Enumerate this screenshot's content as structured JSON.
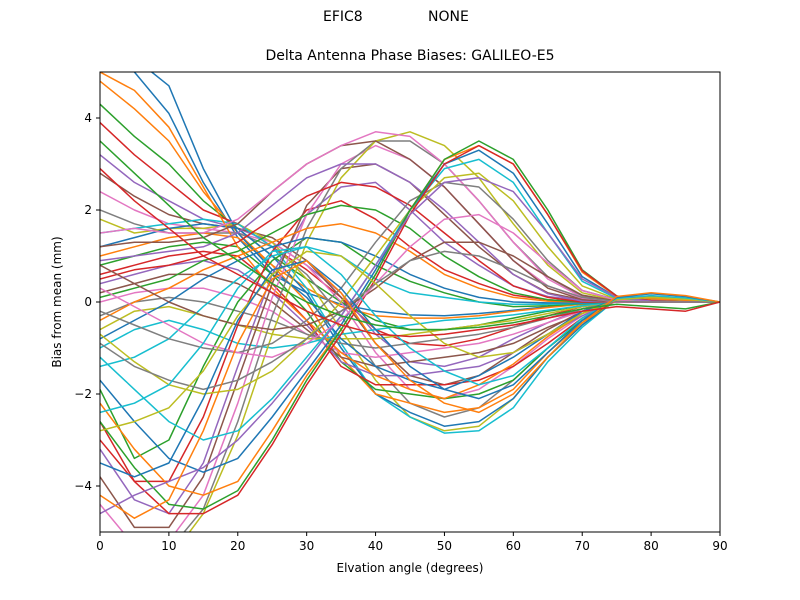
{
  "header": {
    "left_label": "EFIC8",
    "right_label": "NONE"
  },
  "chart_data": {
    "type": "line",
    "title": "Delta Antenna Phase Biases: GALILEO-E5",
    "xlabel": "Elvation angle (degrees)",
    "ylabel": "Bias from mean (mm)",
    "xlim": [
      0,
      90
    ],
    "ylim": [
      -5,
      5
    ],
    "xticks": [
      0,
      10,
      20,
      30,
      40,
      50,
      60,
      70,
      80,
      90
    ],
    "yticks": [
      -4,
      -2,
      0,
      2,
      4
    ],
    "ytick_labels": [
      "−4",
      "−2",
      "0",
      "2",
      "4"
    ],
    "grid": false,
    "legend": "none",
    "x": [
      0,
      5,
      10,
      15,
      20,
      25,
      30,
      35,
      40,
      45,
      50,
      55,
      60,
      65,
      70,
      75,
      80,
      85,
      90
    ],
    "series": [
      {
        "values": [
          5.6,
          5.0,
          4.1,
          2.6,
          1.4,
          0.6,
          0.2,
          -0.05,
          -0.2,
          -0.28,
          -0.3,
          -0.25,
          -0.18,
          -0.1,
          -0.03,
          0.02,
          0.03,
          0.02,
          0.0
        ]
      },
      {
        "values": [
          4.8,
          4.2,
          3.5,
          2.4,
          1.5,
          0.8,
          0.3,
          -0.1,
          -0.3,
          -0.35,
          -0.35,
          -0.3,
          -0.2,
          -0.12,
          -0.05,
          0.0,
          0.02,
          0.01,
          0.0
        ]
      },
      {
        "values": [
          4.3,
          3.6,
          3.0,
          2.2,
          1.6,
          1.0,
          0.5,
          0.0,
          -0.4,
          -0.6,
          -0.6,
          -0.5,
          -0.35,
          -0.2,
          -0.08,
          0.0,
          0.02,
          0.01,
          0.0
        ]
      },
      {
        "values": [
          3.9,
          3.2,
          2.6,
          2.0,
          1.7,
          1.2,
          0.7,
          0.1,
          -0.6,
          -0.9,
          -0.95,
          -0.8,
          -0.55,
          -0.3,
          -0.1,
          0.0,
          0.03,
          0.02,
          0.0
        ]
      },
      {
        "values": [
          3.2,
          2.6,
          2.2,
          1.8,
          1.6,
          1.3,
          0.8,
          0.2,
          -0.7,
          -1.3,
          -1.4,
          -1.2,
          -0.8,
          -0.45,
          -0.15,
          0.02,
          0.05,
          0.03,
          0.0
        ]
      },
      {
        "values": [
          2.8,
          2.3,
          1.9,
          1.7,
          1.6,
          1.4,
          0.9,
          0.1,
          -0.9,
          -1.6,
          -1.8,
          -1.6,
          -1.1,
          -0.6,
          -0.2,
          0.03,
          0.07,
          0.04,
          0.0
        ]
      },
      {
        "values": [
          2.4,
          2.0,
          1.7,
          1.6,
          1.5,
          1.3,
          0.8,
          0.0,
          -1.1,
          -1.9,
          -2.1,
          -1.9,
          -1.4,
          -0.8,
          -0.3,
          0.03,
          0.08,
          0.05,
          0.0
        ]
      },
      {
        "values": [
          2.0,
          1.7,
          1.5,
          1.5,
          1.5,
          1.2,
          0.6,
          -0.3,
          -1.4,
          -2.2,
          -2.5,
          -2.3,
          -1.7,
          -1.0,
          -0.4,
          0.05,
          0.1,
          0.06,
          0.0
        ]
      },
      {
        "values": [
          1.8,
          1.5,
          1.6,
          1.6,
          1.7,
          1.3,
          0.5,
          -0.6,
          -1.7,
          -2.5,
          -2.8,
          -2.7,
          -2.1,
          -1.2,
          -0.5,
          0.05,
          0.12,
          0.07,
          0.0
        ]
      },
      {
        "values": [
          1.5,
          1.6,
          1.7,
          1.8,
          1.7,
          1.2,
          0.3,
          -0.9,
          -2.0,
          -2.5,
          -2.85,
          -2.8,
          -2.3,
          -1.3,
          -0.55,
          0.06,
          0.13,
          0.08,
          0.0
        ]
      },
      {
        "values": [
          1.2,
          1.4,
          1.6,
          1.7,
          1.6,
          1.0,
          0.2,
          -1.0,
          -2.0,
          -2.4,
          -2.7,
          -2.6,
          -2.1,
          -1.2,
          -0.5,
          0.06,
          0.12,
          0.07,
          0.0
        ]
      },
      {
        "values": [
          1.0,
          1.2,
          1.4,
          1.5,
          1.4,
          0.8,
          0.0,
          -1.2,
          -2.0,
          -2.2,
          -2.4,
          -2.3,
          -1.9,
          -1.1,
          -0.45,
          0.05,
          0.11,
          0.06,
          0.0
        ]
      },
      {
        "values": [
          0.8,
          1.0,
          1.2,
          1.3,
          1.2,
          0.6,
          -0.2,
          -1.3,
          -1.9,
          -2.0,
          -2.1,
          -2.0,
          -1.7,
          -1.0,
          -0.4,
          0.04,
          0.1,
          0.05,
          0.0
        ]
      },
      {
        "values": [
          0.6,
          0.8,
          1.0,
          1.1,
          1.0,
          0.4,
          -0.4,
          -1.4,
          -1.8,
          -1.8,
          -1.8,
          -1.7,
          -1.4,
          -0.9,
          -0.35,
          0.04,
          0.09,
          0.05,
          0.0
        ]
      },
      {
        "values": [
          0.4,
          0.6,
          0.8,
          0.9,
          0.7,
          0.2,
          -0.5,
          -1.3,
          -1.6,
          -1.6,
          -1.5,
          -1.4,
          -1.1,
          -0.7,
          -0.3,
          0.03,
          0.08,
          0.04,
          0.0
        ]
      },
      {
        "values": [
          0.2,
          0.4,
          0.6,
          0.6,
          0.4,
          0.0,
          -0.6,
          -1.2,
          -1.4,
          -1.3,
          -1.2,
          -1.1,
          -0.9,
          -0.55,
          -0.25,
          0.02,
          0.06,
          0.03,
          0.0
        ]
      },
      {
        "values": [
          0.0,
          0.2,
          0.3,
          0.3,
          0.1,
          -0.2,
          -0.7,
          -1.1,
          -1.2,
          -1.1,
          -1.0,
          -0.9,
          -0.7,
          -0.45,
          -0.2,
          0.02,
          0.05,
          0.02,
          0.0
        ]
      },
      {
        "values": [
          -0.3,
          0.0,
          0.1,
          0.0,
          -0.2,
          -0.4,
          -0.7,
          -0.9,
          -1.0,
          -0.9,
          -0.8,
          -0.7,
          -0.55,
          -0.35,
          -0.15,
          0.02,
          0.04,
          0.02,
          0.0
        ]
      },
      {
        "values": [
          -0.6,
          -0.2,
          -0.1,
          -0.3,
          -0.5,
          -0.7,
          -0.8,
          -0.8,
          -0.8,
          -0.7,
          -0.6,
          -0.5,
          -0.4,
          -0.25,
          -0.1,
          0.01,
          0.03,
          0.01,
          0.0
        ]
      },
      {
        "values": [
          -1.0,
          -0.6,
          -0.4,
          -0.6,
          -0.9,
          -1.0,
          -0.9,
          -0.7,
          -0.6,
          -0.5,
          -0.4,
          -0.35,
          -0.28,
          -0.18,
          -0.08,
          0.01,
          0.02,
          0.01,
          0.0
        ]
      },
      {
        "values": [
          5.5,
          5.3,
          4.7,
          2.9,
          1.5,
          0.7,
          0.1,
          -0.8,
          -1.4,
          -1.7,
          -1.9,
          -1.6,
          -1.2,
          -0.7,
          -0.2,
          0.05,
          0.08,
          0.05,
          0.0
        ]
      },
      {
        "values": [
          5.0,
          4.6,
          3.8,
          2.5,
          1.2,
          0.3,
          -0.4,
          -1.1,
          -1.6,
          -1.9,
          -2.1,
          -1.8,
          -1.35,
          -0.75,
          -0.25,
          0.04,
          0.07,
          0.04,
          0.0
        ]
      },
      {
        "values": [
          -1.9,
          -3.4,
          -3.0,
          -1.4,
          0.0,
          0.9,
          1.4,
          1.3,
          0.8,
          0.45,
          0.2,
          0.0,
          -0.1,
          -0.08,
          -0.04,
          0.0,
          0.01,
          0.0,
          0.0
        ]
      },
      {
        "values": [
          -2.6,
          -3.9,
          -3.9,
          -2.5,
          -0.5,
          1.1,
          2.0,
          2.2,
          1.8,
          1.2,
          0.7,
          0.4,
          0.15,
          0.05,
          0.0,
          0.0,
          0.0,
          0.0,
          0.0
        ]
      },
      {
        "values": [
          -3.2,
          -4.3,
          -4.6,
          -3.5,
          -1.4,
          0.6,
          1.9,
          2.5,
          2.6,
          2.0,
          1.3,
          0.8,
          0.35,
          0.12,
          0.03,
          0.0,
          0.0,
          0.0,
          0.0
        ]
      },
      {
        "values": [
          -3.8,
          -4.9,
          -4.9,
          -3.8,
          -1.7,
          0.4,
          2.1,
          2.9,
          3.0,
          2.6,
          1.9,
          1.2,
          0.6,
          0.2,
          0.05,
          0.0,
          0.0,
          0.0,
          0.0
        ]
      },
      {
        "values": [
          -4.4,
          -5.3,
          -5.2,
          -4.2,
          -2.2,
          0.1,
          1.9,
          3.0,
          3.4,
          3.1,
          2.5,
          1.7,
          0.9,
          0.35,
          0.08,
          0.01,
          0.0,
          0.0,
          0.0
        ]
      },
      {
        "values": [
          -5.0,
          -5.6,
          -5.4,
          -4.5,
          -2.6,
          -0.3,
          1.6,
          2.9,
          3.5,
          3.5,
          3.0,
          2.2,
          1.3,
          0.55,
          0.12,
          0.02,
          0.01,
          0.0,
          0.0
        ]
      },
      {
        "values": [
          -5.6,
          -5.8,
          -5.6,
          -4.6,
          -2.9,
          -0.7,
          1.3,
          2.7,
          3.5,
          3.7,
          3.4,
          2.7,
          1.7,
          0.8,
          0.2,
          0.03,
          0.01,
          0.0,
          0.0
        ]
      },
      {
        "values": [
          -1.4,
          -1.2,
          -0.8,
          -0.1,
          0.5,
          1.0,
          1.2,
          1.0,
          0.5,
          0.2,
          0.1,
          0.0,
          -0.05,
          -0.05,
          -0.03,
          0.0,
          0.0,
          0.0,
          0.0
        ]
      },
      {
        "values": [
          -0.8,
          -0.4,
          0.0,
          0.5,
          0.9,
          1.2,
          1.4,
          1.3,
          1.0,
          0.6,
          0.3,
          0.1,
          0.0,
          -0.02,
          -0.02,
          0.0,
          0.0,
          0.0,
          0.0
        ]
      },
      {
        "values": [
          -0.4,
          0.0,
          0.3,
          0.7,
          1.0,
          1.3,
          1.6,
          1.7,
          1.5,
          1.1,
          0.6,
          0.3,
          0.1,
          0.02,
          0.0,
          0.0,
          0.0,
          0.0,
          0.0
        ]
      },
      {
        "values": [
          0.1,
          0.3,
          0.5,
          0.9,
          1.1,
          1.5,
          1.9,
          2.1,
          2.0,
          1.6,
          1.0,
          0.55,
          0.2,
          0.05,
          0.0,
          0.0,
          0.0,
          0.0,
          0.0
        ]
      },
      {
        "values": [
          0.5,
          0.7,
          0.8,
          1.0,
          1.3,
          1.8,
          2.3,
          2.6,
          2.5,
          2.1,
          1.5,
          0.9,
          0.35,
          0.1,
          0.0,
          0.0,
          0.0,
          0.0,
          0.0
        ]
      },
      {
        "values": [
          0.9,
          1.0,
          1.1,
          1.2,
          1.5,
          2.1,
          2.7,
          3.0,
          3.0,
          2.6,
          2.0,
          1.3,
          0.6,
          0.18,
          0.02,
          0.0,
          0.0,
          0.0,
          0.0
        ]
      },
      {
        "values": [
          1.2,
          1.3,
          1.3,
          1.4,
          1.7,
          2.4,
          3.0,
          3.4,
          3.5,
          3.1,
          2.5,
          1.7,
          0.9,
          0.3,
          0.05,
          0.0,
          0.0,
          0.0,
          0.0
        ]
      },
      {
        "values": [
          1.5,
          1.6,
          1.5,
          1.5,
          1.8,
          2.4,
          3.0,
          3.4,
          3.7,
          3.6,
          3.0,
          2.2,
          1.3,
          0.5,
          0.1,
          0.0,
          0.0,
          0.0,
          0.0
        ]
      },
      {
        "values": [
          -0.2,
          -0.5,
          -0.8,
          -1.0,
          -1.1,
          -0.9,
          -0.4,
          0.3,
          1.3,
          2.2,
          2.6,
          2.5,
          1.8,
          0.9,
          0.25,
          0.05,
          0.0,
          0.0,
          0.0
        ]
      },
      {
        "values": [
          -0.7,
          -1.3,
          -1.8,
          -2.0,
          -1.9,
          -1.5,
          -0.8,
          0.0,
          1.0,
          2.0,
          2.7,
          2.8,
          2.2,
          1.2,
          0.35,
          0.06,
          0.01,
          0.0,
          0.0
        ]
      },
      {
        "values": [
          -1.2,
          -1.9,
          -2.6,
          -3.0,
          -2.8,
          -2.1,
          -1.2,
          -0.3,
          0.8,
          2.0,
          2.9,
          3.1,
          2.6,
          1.5,
          0.45,
          0.08,
          0.02,
          0.0,
          0.0
        ]
      },
      {
        "values": [
          -1.7,
          -2.6,
          -3.4,
          -3.7,
          -3.4,
          -2.5,
          -1.5,
          -0.5,
          0.7,
          2.0,
          3.0,
          3.3,
          2.8,
          1.7,
          0.55,
          0.1,
          0.02,
          0.0,
          0.0
        ]
      },
      {
        "values": [
          -2.2,
          -3.2,
          -4.0,
          -4.2,
          -3.9,
          -2.8,
          -1.6,
          -0.6,
          0.6,
          2.0,
          3.1,
          3.4,
          3.0,
          1.9,
          0.65,
          0.12,
          0.03,
          0.0,
          0.0
        ]
      },
      {
        "values": [
          -2.6,
          -3.6,
          -4.4,
          -4.5,
          -4.1,
          -3.0,
          -1.7,
          -0.6,
          0.6,
          2.0,
          3.1,
          3.5,
          3.1,
          2.0,
          0.7,
          0.13,
          0.03,
          0.0,
          0.0
        ]
      },
      {
        "values": [
          -3.0,
          -3.9,
          -4.6,
          -4.6,
          -4.2,
          -3.1,
          -1.8,
          -0.7,
          0.5,
          1.9,
          3.0,
          3.4,
          3.0,
          1.9,
          0.68,
          0.13,
          0.03,
          0.0,
          0.0
        ]
      },
      {
        "values": [
          -4.6,
          -4.2,
          -3.9,
          -3.6,
          -3.0,
          -2.2,
          -1.3,
          -0.3,
          0.8,
          1.9,
          2.6,
          2.7,
          2.4,
          1.5,
          0.5,
          0.1,
          0.02,
          0.0,
          0.0
        ]
      },
      {
        "values": [
          0.8,
          0.4,
          0.0,
          -0.3,
          -0.5,
          -0.6,
          -0.5,
          -0.2,
          0.3,
          0.9,
          1.3,
          1.3,
          1.0,
          0.55,
          0.15,
          0.02,
          0.0,
          0.0,
          0.0
        ]
      },
      {
        "values": [
          0.3,
          -0.1,
          -0.5,
          -0.9,
          -1.1,
          -1.2,
          -0.9,
          -0.4,
          0.4,
          1.2,
          1.8,
          1.9,
          1.5,
          0.85,
          0.25,
          0.04,
          0.0,
          0.0,
          0.0
        ]
      },
      {
        "values": [
          -0.9,
          -1.4,
          -1.7,
          -1.9,
          -1.7,
          -1.3,
          -0.8,
          -0.2,
          0.4,
          0.9,
          1.1,
          1.0,
          0.7,
          0.35,
          0.1,
          0.01,
          0.0,
          0.0,
          0.0
        ]
      },
      {
        "values": [
          -2.8,
          -2.6,
          -2.3,
          -1.5,
          -0.3,
          0.6,
          1.1,
          1.0,
          0.4,
          -0.3,
          -0.9,
          -1.2,
          -1.1,
          -0.7,
          -0.25,
          0.05,
          0.1,
          0.06,
          0.0
        ]
      },
      {
        "values": [
          -2.4,
          -2.2,
          -1.8,
          -0.9,
          0.3,
          1.1,
          1.2,
          0.6,
          -0.3,
          -1.0,
          -1.5,
          -1.8,
          -1.6,
          -1.0,
          -0.35,
          0.08,
          0.14,
          0.09,
          0.0
        ]
      },
      {
        "values": [
          -3.5,
          -3.8,
          -3.5,
          -2.1,
          -0.4,
          0.7,
          0.9,
          0.3,
          -0.6,
          -1.4,
          -1.9,
          -2.1,
          -1.8,
          -1.1,
          -0.4,
          0.1,
          0.18,
          0.12,
          0.0
        ]
      },
      {
        "values": [
          -4.2,
          -4.7,
          -4.3,
          -2.8,
          -0.9,
          0.5,
          0.9,
          0.2,
          -0.9,
          -1.7,
          -2.2,
          -2.4,
          -2.0,
          -1.2,
          -0.45,
          0.12,
          0.2,
          0.14,
          0.0
        ]
      },
      {
        "values": [
          3.5,
          2.8,
          2.1,
          1.4,
          0.9,
          0.4,
          0.0,
          -0.3,
          -0.5,
          -0.6,
          -0.6,
          -0.55,
          -0.45,
          -0.3,
          -0.15,
          -0.05,
          -0.1,
          -0.15,
          0.0
        ]
      },
      {
        "values": [
          2.9,
          2.2,
          1.6,
          1.0,
          0.6,
          0.2,
          -0.2,
          -0.5,
          -0.7,
          -0.75,
          -0.7,
          -0.6,
          -0.5,
          -0.35,
          -0.2,
          -0.1,
          -0.15,
          -0.2,
          0.0
        ]
      }
    ]
  }
}
